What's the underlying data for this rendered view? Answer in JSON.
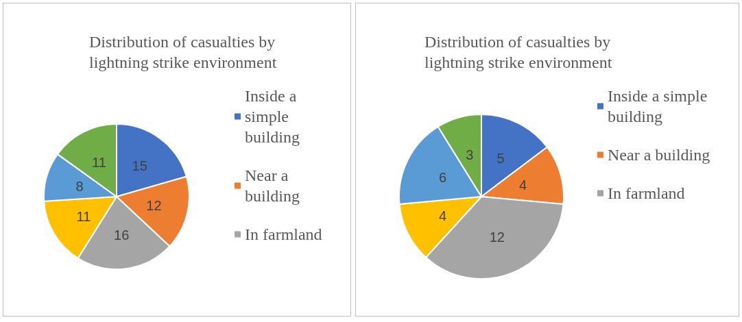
{
  "chart_data": [
    {
      "type": "pie",
      "title": "Distribution of casualties by lightning strike environment",
      "categories": [
        "Inside a simple building",
        "Near a building",
        "In farmland",
        null,
        null,
        null
      ],
      "values": [
        15,
        12,
        16,
        11,
        8,
        11
      ],
      "colors": [
        "#4472c4",
        "#ed7d31",
        "#a5a5a5",
        "#ffc000",
        "#5b9bd5",
        "#70ad47"
      ],
      "data_labels": true,
      "legend": "right"
    },
    {
      "type": "pie",
      "title": "Distribution of casualties by lightning strike environment",
      "categories": [
        "Inside a simple building",
        "Near a building",
        "In farmland",
        null,
        null,
        null
      ],
      "values": [
        5,
        4,
        12,
        4,
        6,
        3
      ],
      "colors": [
        "#4472c4",
        "#ed7d31",
        "#a5a5a5",
        "#ffc000",
        "#5b9bd5",
        "#70ad47"
      ],
      "data_labels": true,
      "legend": "right"
    }
  ]
}
